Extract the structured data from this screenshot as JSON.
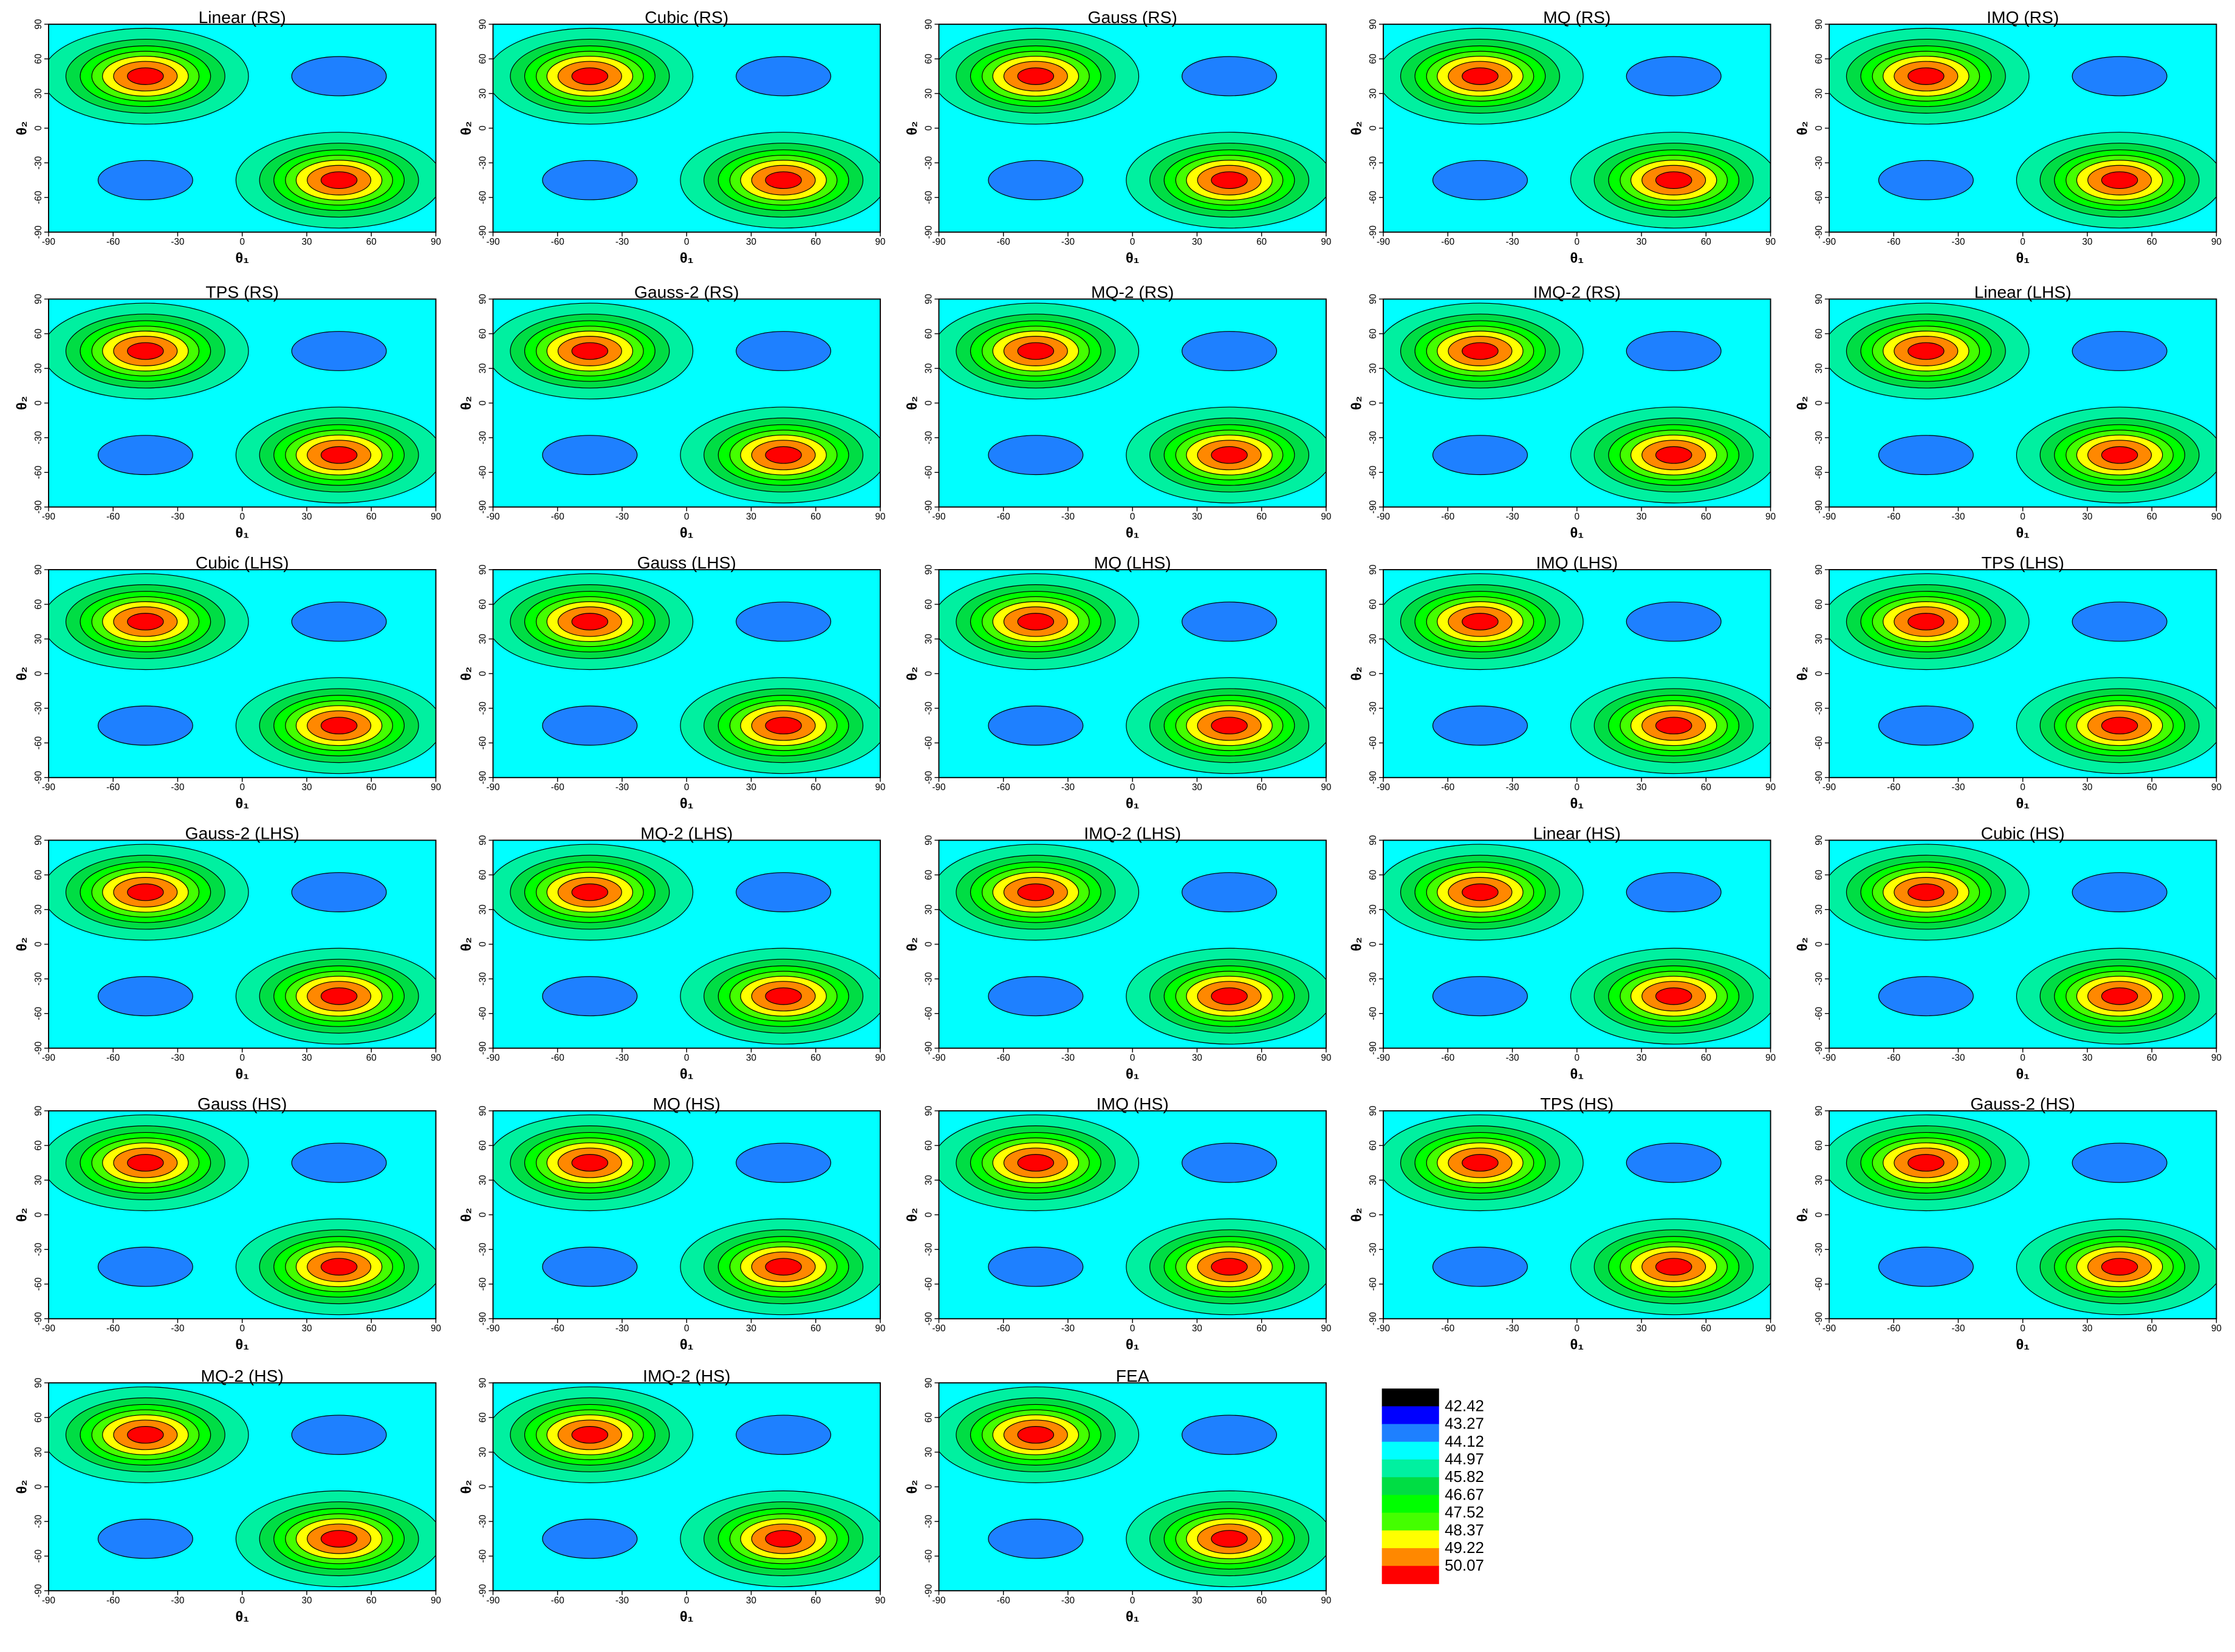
{
  "chart_data": [
    {
      "type": "contour",
      "title": "Linear (RS)",
      "xlabel": "θ₁",
      "ylabel": "θ₂",
      "xlim": [
        -90,
        90
      ],
      "ylim": [
        -90,
        90
      ],
      "xticks": [
        -90,
        -60,
        -30,
        0,
        30,
        60,
        90
      ],
      "yticks": [
        -90,
        -60,
        -30,
        0,
        30,
        60,
        90
      ]
    },
    {
      "type": "contour",
      "title": "Cubic (RS)",
      "xlabel": "θ₁",
      "ylabel": "θ₂",
      "xlim": [
        -90,
        90
      ],
      "ylim": [
        -90,
        90
      ],
      "xticks": [
        -90,
        -60,
        -30,
        0,
        30,
        60,
        90
      ],
      "yticks": [
        -90,
        -60,
        -30,
        0,
        30,
        60,
        90
      ]
    },
    {
      "type": "contour",
      "title": "Gauss (RS)",
      "xlabel": "θ₁",
      "ylabel": "θ₂",
      "xlim": [
        -90,
        90
      ],
      "ylim": [
        -90,
        90
      ],
      "xticks": [
        -90,
        -60,
        -30,
        0,
        30,
        60,
        90
      ],
      "yticks": [
        -90,
        -60,
        -30,
        0,
        30,
        60,
        90
      ]
    },
    {
      "type": "contour",
      "title": "MQ (RS)",
      "xlabel": "θ₁",
      "ylabel": "θ₂",
      "xlim": [
        -90,
        90
      ],
      "ylim": [
        -90,
        90
      ],
      "xticks": [
        -90,
        -60,
        -30,
        0,
        30,
        60,
        90
      ],
      "yticks": [
        -90,
        -60,
        -30,
        0,
        30,
        60,
        90
      ]
    },
    {
      "type": "contour",
      "title": "IMQ (RS)",
      "xlabel": "θ₁",
      "ylabel": "θ₂",
      "xlim": [
        -90,
        90
      ],
      "ylim": [
        -90,
        90
      ],
      "xticks": [
        -90,
        -60,
        -30,
        0,
        30,
        60,
        90
      ],
      "yticks": [
        -90,
        -60,
        -30,
        0,
        30,
        60,
        90
      ]
    },
    {
      "type": "contour",
      "title": "TPS (RS)",
      "xlabel": "θ₁",
      "ylabel": "θ₂",
      "xlim": [
        -90,
        90
      ],
      "ylim": [
        -90,
        90
      ],
      "xticks": [
        -90,
        -60,
        -30,
        0,
        30,
        60,
        90
      ],
      "yticks": [
        -90,
        -60,
        -30,
        0,
        30,
        60,
        90
      ]
    },
    {
      "type": "contour",
      "title": "Gauss-2 (RS)",
      "xlabel": "θ₁",
      "ylabel": "θ₂",
      "xlim": [
        -90,
        90
      ],
      "ylim": [
        -90,
        90
      ],
      "xticks": [
        -90,
        -60,
        -30,
        0,
        30,
        60,
        90
      ],
      "yticks": [
        -90,
        -60,
        -30,
        0,
        30,
        60,
        90
      ]
    },
    {
      "type": "contour",
      "title": "MQ-2 (RS)",
      "xlabel": "θ₁",
      "ylabel": "θ₂",
      "xlim": [
        -90,
        90
      ],
      "ylim": [
        -90,
        90
      ],
      "xticks": [
        -90,
        -60,
        -30,
        0,
        30,
        60,
        90
      ],
      "yticks": [
        -90,
        -60,
        -30,
        0,
        30,
        60,
        90
      ]
    },
    {
      "type": "contour",
      "title": "IMQ-2 (RS)",
      "xlabel": "θ₁",
      "ylabel": "θ₂",
      "xlim": [
        -90,
        90
      ],
      "ylim": [
        -90,
        90
      ],
      "xticks": [
        -90,
        -60,
        -30,
        0,
        30,
        60,
        90
      ],
      "yticks": [
        -90,
        -60,
        -30,
        0,
        30,
        60,
        90
      ]
    },
    {
      "type": "contour",
      "title": "Linear (LHS)",
      "xlabel": "θ₁",
      "ylabel": "θ₂",
      "xlim": [
        -90,
        90
      ],
      "ylim": [
        -90,
        90
      ],
      "xticks": [
        -90,
        -60,
        -30,
        0,
        30,
        60,
        90
      ],
      "yticks": [
        -90,
        -60,
        -30,
        0,
        30,
        60,
        90
      ]
    },
    {
      "type": "contour",
      "title": "Cubic (LHS)",
      "xlabel": "θ₁",
      "ylabel": "θ₂",
      "xlim": [
        -90,
        90
      ],
      "ylim": [
        -90,
        90
      ],
      "xticks": [
        -90,
        -60,
        -30,
        0,
        30,
        60,
        90
      ],
      "yticks": [
        -90,
        -60,
        -30,
        0,
        30,
        60,
        90
      ]
    },
    {
      "type": "contour",
      "title": "Gauss (LHS)",
      "xlabel": "θ₁",
      "ylabel": "θ₂",
      "xlim": [
        -90,
        90
      ],
      "ylim": [
        -90,
        90
      ],
      "xticks": [
        -90,
        -60,
        -30,
        0,
        30,
        60,
        90
      ],
      "yticks": [
        -90,
        -60,
        -30,
        0,
        30,
        60,
        90
      ]
    },
    {
      "type": "contour",
      "title": "MQ (LHS)",
      "xlabel": "θ₁",
      "ylabel": "θ₂",
      "xlim": [
        -90,
        90
      ],
      "ylim": [
        -90,
        90
      ],
      "xticks": [
        -90,
        -60,
        -30,
        0,
        30,
        60,
        90
      ],
      "yticks": [
        -90,
        -60,
        -30,
        0,
        30,
        60,
        90
      ]
    },
    {
      "type": "contour",
      "title": "IMQ (LHS)",
      "xlabel": "θ₁",
      "ylabel": "θ₂",
      "xlim": [
        -90,
        90
      ],
      "ylim": [
        -90,
        90
      ],
      "xticks": [
        -90,
        -60,
        -30,
        0,
        30,
        60,
        90
      ],
      "yticks": [
        -90,
        -60,
        -30,
        0,
        30,
        60,
        90
      ]
    },
    {
      "type": "contour",
      "title": "TPS (LHS)",
      "xlabel": "θ₁",
      "ylabel": "θ₂",
      "xlim": [
        -90,
        90
      ],
      "ylim": [
        -90,
        90
      ],
      "xticks": [
        -90,
        -60,
        -30,
        0,
        30,
        60,
        90
      ],
      "yticks": [
        -90,
        -60,
        -30,
        0,
        30,
        60,
        90
      ]
    },
    {
      "type": "contour",
      "title": "Gauss-2 (LHS)",
      "xlabel": "θ₁",
      "ylabel": "θ₂",
      "xlim": [
        -90,
        90
      ],
      "ylim": [
        -90,
        90
      ],
      "xticks": [
        -90,
        -60,
        -30,
        0,
        30,
        60,
        90
      ],
      "yticks": [
        -90,
        -60,
        -30,
        0,
        30,
        60,
        90
      ]
    },
    {
      "type": "contour",
      "title": "MQ-2 (LHS)",
      "xlabel": "θ₁",
      "ylabel": "θ₂",
      "xlim": [
        -90,
        90
      ],
      "ylim": [
        -90,
        90
      ],
      "xticks": [
        -90,
        -60,
        -30,
        0,
        30,
        60,
        90
      ],
      "yticks": [
        -90,
        -60,
        -30,
        0,
        30,
        60,
        90
      ]
    },
    {
      "type": "contour",
      "title": "IMQ-2 (LHS)",
      "xlabel": "θ₁",
      "ylabel": "θ₂",
      "xlim": [
        -90,
        90
      ],
      "ylim": [
        -90,
        90
      ],
      "xticks": [
        -90,
        -60,
        -30,
        0,
        30,
        60,
        90
      ],
      "yticks": [
        -90,
        -60,
        -30,
        0,
        30,
        60,
        90
      ]
    },
    {
      "type": "contour",
      "title": "Linear (HS)",
      "xlabel": "θ₁",
      "ylabel": "θ₂",
      "xlim": [
        -90,
        90
      ],
      "ylim": [
        -90,
        90
      ],
      "xticks": [
        -90,
        -60,
        -30,
        0,
        30,
        60,
        90
      ],
      "yticks": [
        -90,
        -60,
        -30,
        0,
        30,
        60,
        90
      ]
    },
    {
      "type": "contour",
      "title": "Cubic (HS)",
      "xlabel": "θ₁",
      "ylabel": "θ₂",
      "xlim": [
        -90,
        90
      ],
      "ylim": [
        -90,
        90
      ],
      "xticks": [
        -90,
        -60,
        -30,
        0,
        30,
        60,
        90
      ],
      "yticks": [
        -90,
        -60,
        -30,
        0,
        30,
        60,
        90
      ]
    },
    {
      "type": "contour",
      "title": "Gauss (HS)",
      "xlabel": "θ₁",
      "ylabel": "θ₂",
      "xlim": [
        -90,
        90
      ],
      "ylim": [
        -90,
        90
      ],
      "xticks": [
        -90,
        -60,
        -30,
        0,
        30,
        60,
        90
      ],
      "yticks": [
        -90,
        -60,
        -30,
        0,
        30,
        60,
        90
      ]
    },
    {
      "type": "contour",
      "title": "MQ (HS)",
      "xlabel": "θ₁",
      "ylabel": "θ₂",
      "xlim": [
        -90,
        90
      ],
      "ylim": [
        -90,
        90
      ],
      "xticks": [
        -90,
        -60,
        -30,
        0,
        30,
        60,
        90
      ],
      "yticks": [
        -90,
        -60,
        -30,
        0,
        30,
        60,
        90
      ]
    },
    {
      "type": "contour",
      "title": "IMQ (HS)",
      "xlabel": "θ₁",
      "ylabel": "θ₂",
      "xlim": [
        -90,
        90
      ],
      "ylim": [
        -90,
        90
      ],
      "xticks": [
        -90,
        -60,
        -30,
        0,
        30,
        60,
        90
      ],
      "yticks": [
        -90,
        -60,
        -30,
        0,
        30,
        60,
        90
      ]
    },
    {
      "type": "contour",
      "title": "TPS (HS)",
      "xlabel": "θ₁",
      "ylabel": "θ₂",
      "xlim": [
        -90,
        90
      ],
      "ylim": [
        -90,
        90
      ],
      "xticks": [
        -90,
        -60,
        -30,
        0,
        30,
        60,
        90
      ],
      "yticks": [
        -90,
        -60,
        -30,
        0,
        30,
        60,
        90
      ]
    },
    {
      "type": "contour",
      "title": "Gauss-2 (HS)",
      "xlabel": "θ₁",
      "ylabel": "θ₂",
      "xlim": [
        -90,
        90
      ],
      "ylim": [
        -90,
        90
      ],
      "xticks": [
        -90,
        -60,
        -30,
        0,
        30,
        60,
        90
      ],
      "yticks": [
        -90,
        -60,
        -30,
        0,
        30,
        60,
        90
      ]
    },
    {
      "type": "contour",
      "title": "MQ-2 (HS)",
      "xlabel": "θ₁",
      "ylabel": "θ₂",
      "xlim": [
        -90,
        90
      ],
      "ylim": [
        -90,
        90
      ],
      "xticks": [
        -90,
        -60,
        -30,
        0,
        30,
        60,
        90
      ],
      "yticks": [
        -90,
        -60,
        -30,
        0,
        30,
        60,
        90
      ]
    },
    {
      "type": "contour",
      "title": "IMQ-2 (HS)",
      "xlabel": "θ₁",
      "ylabel": "θ₂",
      "xlim": [
        -90,
        90
      ],
      "ylim": [
        -90,
        90
      ],
      "xticks": [
        -90,
        -60,
        -30,
        0,
        30,
        60,
        90
      ],
      "yticks": [
        -90,
        -60,
        -30,
        0,
        30,
        60,
        90
      ]
    },
    {
      "type": "contour",
      "title": "FEA",
      "xlabel": "θ₁",
      "ylabel": "θ₂",
      "xlim": [
        -90,
        90
      ],
      "ylim": [
        -90,
        90
      ],
      "xticks": [
        -90,
        -60,
        -30,
        0,
        30,
        60,
        90
      ],
      "yticks": [
        -90,
        -60,
        -30,
        0,
        30,
        60,
        90
      ]
    },
    {
      "type": "colorbar",
      "levels": [
        42.42,
        43.27,
        44.12,
        44.97,
        45.82,
        46.67,
        47.52,
        48.37,
        49.22,
        50.07
      ],
      "colors": [
        "#000000",
        "#0000ff",
        "#1e80ff",
        "#00ffff",
        "#00f0a0",
        "#00dd44",
        "#00ff00",
        "#44ff00",
        "#ffff00",
        "#ff8800",
        "#ff0000"
      ]
    }
  ]
}
